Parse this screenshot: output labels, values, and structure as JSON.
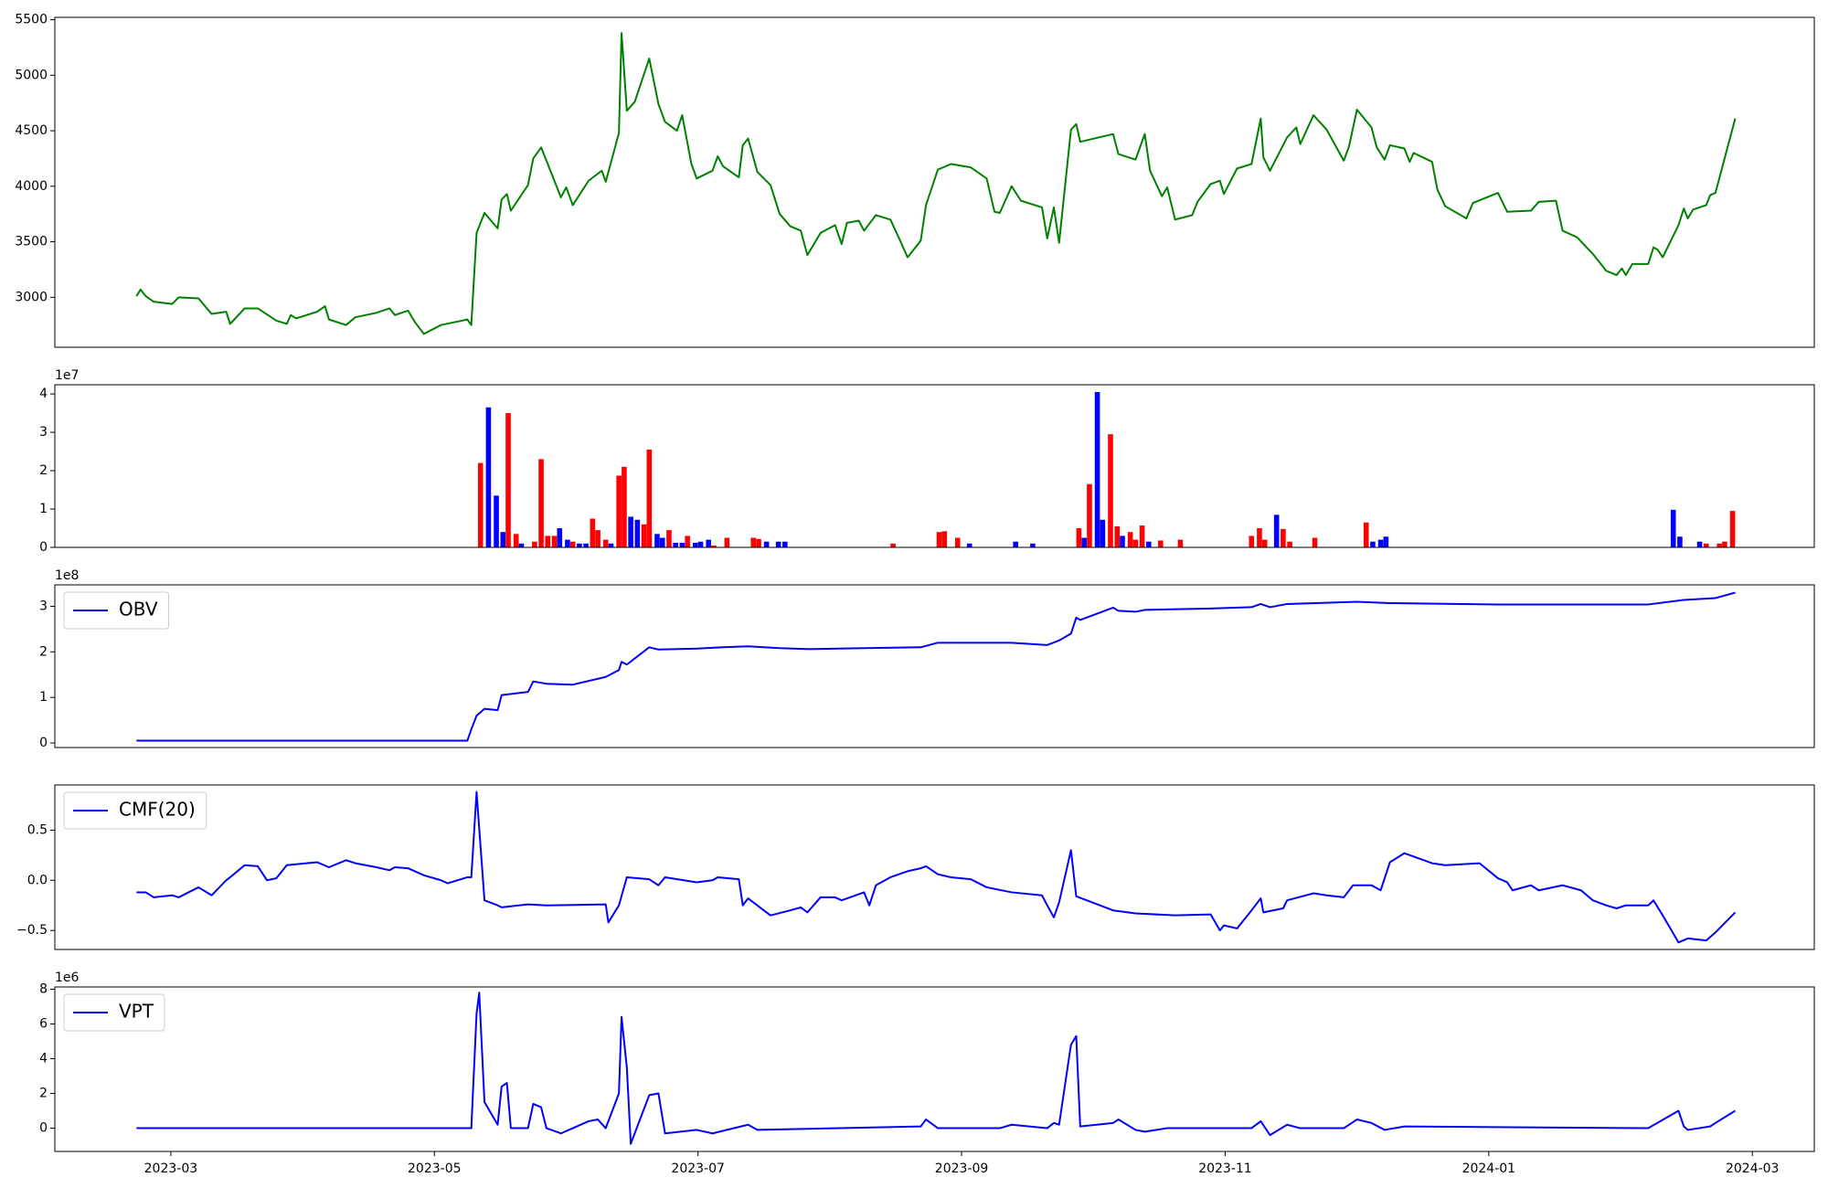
{
  "chart_data": [
    {
      "type": "line",
      "color": "green",
      "xlim": [
        1.12,
        14.47
      ],
      "ylim": [
        2550,
        5521
      ],
      "yticks": [
        3000,
        3500,
        4000,
        4500,
        5000,
        5500
      ],
      "x": [
        1.74,
        1.77,
        1.81,
        1.87,
        2.01,
        2.06,
        2.21,
        2.31,
        2.42,
        2.45,
        2.56,
        2.66,
        2.8,
        2.88,
        2.91,
        2.95,
        3.11,
        3.17,
        3.2,
        3.33,
        3.4,
        3.56,
        3.66,
        3.7,
        3.8,
        3.85,
        3.92,
        4.05,
        4.25,
        4.28,
        4.32,
        4.38,
        4.48,
        4.51,
        4.55,
        4.58,
        4.71,
        4.75,
        4.81,
        4.85,
        4.96,
        5.0,
        5.05,
        5.17,
        5.27,
        5.3,
        5.4,
        5.42,
        5.46,
        5.52,
        5.63,
        5.7,
        5.75,
        5.84,
        5.88,
        5.95,
        5.99,
        6.11,
        6.15,
        6.19,
        6.31,
        6.34,
        6.38,
        6.45,
        6.55,
        6.62,
        6.7,
        6.78,
        6.83,
        6.93,
        7.04,
        7.09,
        7.13,
        7.22,
        7.26,
        7.35,
        7.46,
        7.53,
        7.59,
        7.69,
        7.73,
        7.82,
        7.92,
        8.07,
        8.19,
        8.25,
        8.29,
        8.38,
        8.45,
        8.61,
        8.65,
        8.7,
        8.74,
        8.83,
        8.87,
        8.9,
        9.15,
        9.19,
        9.32,
        9.39,
        9.43,
        9.52,
        9.56,
        9.62,
        9.75,
        9.79,
        9.89,
        9.96,
        9.99,
        10.09,
        10.2,
        10.27,
        10.29,
        10.34,
        10.47,
        10.54,
        10.57,
        10.67,
        10.77,
        10.9,
        10.94,
        11.0,
        11.11,
        11.15,
        11.21,
        11.25,
        11.36,
        11.4,
        11.43,
        11.57,
        11.61,
        11.67,
        11.83,
        11.88,
        12.07,
        12.14,
        12.32,
        12.38,
        12.51,
        12.56,
        12.67,
        12.79,
        12.89,
        12.97,
        13.01,
        13.04,
        13.09,
        13.21,
        13.25,
        13.28,
        13.32,
        13.44,
        13.48,
        13.51,
        13.55,
        13.65,
        13.68,
        13.72,
        13.87
      ],
      "values": [
        3010,
        3070,
        3010,
        2960,
        2940,
        3000,
        2990,
        2850,
        2870,
        2760,
        2900,
        2900,
        2790,
        2760,
        2840,
        2810,
        2870,
        2920,
        2800,
        2750,
        2820,
        2860,
        2900,
        2840,
        2880,
        2780,
        2670,
        2750,
        2800,
        2750,
        3580,
        3760,
        3620,
        3880,
        3930,
        3780,
        4010,
        4250,
        4350,
        4230,
        3900,
        3990,
        3830,
        4050,
        4140,
        4040,
        4480,
        5380,
        4680,
        4760,
        5150,
        4740,
        4580,
        4500,
        4640,
        4200,
        4070,
        4140,
        4270,
        4180,
        4080,
        4370,
        4430,
        4130,
        4010,
        3750,
        3640,
        3600,
        3380,
        3580,
        3650,
        3480,
        3670,
        3690,
        3600,
        3740,
        3700,
        3520,
        3360,
        3510,
        3830,
        4150,
        4200,
        4170,
        4070,
        3770,
        3760,
        4000,
        3870,
        3810,
        3530,
        3810,
        3490,
        4510,
        4560,
        4400,
        4470,
        4290,
        4240,
        4470,
        4140,
        3910,
        3990,
        3700,
        3740,
        3860,
        4020,
        4050,
        3930,
        4160,
        4200,
        4610,
        4260,
        4140,
        4440,
        4530,
        4380,
        4640,
        4510,
        4230,
        4360,
        4690,
        4530,
        4350,
        4240,
        4370,
        4340,
        4220,
        4300,
        4220,
        3970,
        3820,
        3710,
        3850,
        3940,
        3770,
        3780,
        3860,
        3870,
        3600,
        3540,
        3390,
        3240,
        3200,
        3260,
        3200,
        3300,
        3300,
        3450,
        3430,
        3360,
        3650,
        3800,
        3710,
        3790,
        3830,
        3920,
        3940,
        4610
      ]
    },
    {
      "type": "bar",
      "offset_label": "1e7",
      "xlim": [
        1.12,
        14.47
      ],
      "ylim": [
        0,
        4.24
      ],
      "yticks": [
        0,
        1,
        2,
        3,
        4
      ],
      "x": [
        4.35,
        4.41,
        4.47,
        4.52,
        4.56,
        4.62,
        4.66,
        4.76,
        4.81,
        4.86,
        4.91,
        4.95,
        5.01,
        5.05,
        5.1,
        5.15,
        5.2,
        5.24,
        5.3,
        5.34,
        5.4,
        5.44,
        5.49,
        5.54,
        5.59,
        5.63,
        5.69,
        5.73,
        5.78,
        5.83,
        5.88,
        5.92,
        5.98,
        6.02,
        6.08,
        6.12,
        6.22,
        6.42,
        6.46,
        6.52,
        6.61,
        6.66,
        7.48,
        7.83,
        7.87,
        7.97,
        8.06,
        8.41,
        8.54,
        8.89,
        8.93,
        8.97,
        9.03,
        9.07,
        9.13,
        9.18,
        9.22,
        9.28,
        9.32,
        9.37,
        9.42,
        9.51,
        9.66,
        10.2,
        10.26,
        10.3,
        10.39,
        10.44,
        10.49,
        10.68,
        11.07,
        11.12,
        11.18,
        11.22,
        13.4,
        13.45,
        13.6,
        13.65,
        13.75,
        13.79,
        13.85
      ],
      "values": [
        2.2,
        3.65,
        1.35,
        0.4,
        3.5,
        0.35,
        0.1,
        0.15,
        2.3,
        0.3,
        0.3,
        0.5,
        0.2,
        0.15,
        0.1,
        0.1,
        0.75,
        0.45,
        0.2,
        0.1,
        1.87,
        2.1,
        0.8,
        0.72,
        0.6,
        2.55,
        0.35,
        0.25,
        0.45,
        0.12,
        0.12,
        0.3,
        0.12,
        0.15,
        0.2,
        0.05,
        0.25,
        0.25,
        0.22,
        0.15,
        0.15,
        0.15,
        0.1,
        0.4,
        0.42,
        0.25,
        0.1,
        0.15,
        0.1,
        0.5,
        0.25,
        1.65,
        4.05,
        0.72,
        2.95,
        0.55,
        0.3,
        0.4,
        0.2,
        0.57,
        0.15,
        0.18,
        0.2,
        0.3,
        0.5,
        0.2,
        0.85,
        0.48,
        0.15,
        0.25,
        0.65,
        0.15,
        0.2,
        0.28,
        0.98,
        0.28,
        0.15,
        0.1,
        0.1,
        0.15,
        0.95
      ],
      "colors": [
        "red",
        "blue",
        "blue",
        "blue",
        "red",
        "red",
        "blue",
        "red",
        "red",
        "red",
        "red",
        "blue",
        "blue",
        "red",
        "blue",
        "blue",
        "red",
        "red",
        "red",
        "blue",
        "red",
        "red",
        "blue",
        "blue",
        "red",
        "red",
        "blue",
        "blue",
        "red",
        "blue",
        "blue",
        "red",
        "blue",
        "blue",
        "blue",
        "red",
        "red",
        "red",
        "red",
        "blue",
        "blue",
        "blue",
        "red",
        "red",
        "red",
        "red",
        "blue",
        "blue",
        "blue",
        "red",
        "blue",
        "red",
        "blue",
        "blue",
        "red",
        "red",
        "blue",
        "red",
        "red",
        "red",
        "blue",
        "red",
        "red",
        "red",
        "red",
        "red",
        "blue",
        "red",
        "red",
        "red",
        "red",
        "blue",
        "blue",
        "blue",
        "blue",
        "blue",
        "blue",
        "red",
        "red",
        "red",
        "red"
      ]
    },
    {
      "type": "line",
      "offset_label": "1e8",
      "legend": "upper left",
      "xlim": [
        1.12,
        14.47
      ],
      "ylim": [
        -0.1,
        3.47
      ],
      "yticks": [
        0,
        1,
        2,
        3
      ],
      "x": [
        1.74,
        4.25,
        4.28,
        4.32,
        4.38,
        4.48,
        4.51,
        4.71,
        4.75,
        4.85,
        5.05,
        5.3,
        5.4,
        5.42,
        5.46,
        5.63,
        5.7,
        5.99,
        6.19,
        6.38,
        6.62,
        6.83,
        7.26,
        7.69,
        7.82,
        8.38,
        8.65,
        8.74,
        8.83,
        8.87,
        8.9,
        9.15,
        9.19,
        9.32,
        9.39,
        9.89,
        10.2,
        10.27,
        10.34,
        10.47,
        11.0,
        11.25,
        12.07,
        13.21,
        13.48,
        13.72,
        13.87
      ],
      "series": [
        {
          "name": "OBV",
          "color": "blue",
          "values": [
            0.05,
            0.05,
            0.3,
            0.6,
            0.75,
            0.72,
            1.05,
            1.12,
            1.35,
            1.3,
            1.28,
            1.45,
            1.6,
            1.78,
            1.72,
            2.1,
            2.05,
            2.07,
            2.1,
            2.12,
            2.08,
            2.06,
            2.08,
            2.1,
            2.2,
            2.2,
            2.15,
            2.25,
            2.4,
            2.75,
            2.7,
            2.97,
            2.9,
            2.88,
            2.92,
            2.95,
            2.98,
            3.05,
            2.98,
            3.05,
            3.1,
            3.07,
            3.04,
            3.04,
            3.14,
            3.18,
            3.3
          ]
        }
      ]
    },
    {
      "type": "line",
      "legend": "upper left",
      "xlim": [
        1.12,
        14.47
      ],
      "ylim": [
        -0.69,
        0.95
      ],
      "yticks": [
        {
          "value": -0.5,
          "label": "−0.5"
        },
        {
          "value": 0,
          "label": "0.0"
        },
        0.5
      ],
      "x": [
        1.74,
        1.81,
        1.87,
        2.01,
        2.06,
        2.21,
        2.31,
        2.42,
        2.45,
        2.56,
        2.66,
        2.73,
        2.8,
        2.88,
        2.95,
        3.11,
        3.2,
        3.33,
        3.4,
        3.56,
        3.66,
        3.7,
        3.8,
        3.92,
        4.05,
        4.1,
        4.25,
        4.28,
        4.32,
        4.38,
        4.48,
        4.51,
        4.71,
        4.85,
        5.3,
        5.32,
        5.4,
        5.46,
        5.63,
        5.7,
        5.75,
        5.99,
        6.11,
        6.15,
        6.31,
        6.34,
        6.38,
        6.55,
        6.7,
        6.78,
        6.83,
        6.93,
        7.04,
        7.09,
        7.26,
        7.3,
        7.35,
        7.46,
        7.59,
        7.69,
        7.73,
        7.82,
        7.92,
        8.07,
        8.19,
        8.38,
        8.61,
        8.65,
        8.7,
        8.74,
        8.83,
        8.87,
        9.15,
        9.32,
        9.62,
        9.89,
        9.96,
        9.99,
        10.09,
        10.2,
        10.27,
        10.29,
        10.44,
        10.47,
        10.67,
        10.77,
        10.9,
        10.97,
        11.11,
        11.18,
        11.25,
        11.36,
        11.57,
        11.67,
        11.93,
        12.07,
        12.14,
        12.18,
        12.32,
        12.38,
        12.56,
        12.7,
        12.79,
        12.89,
        12.97,
        13.04,
        13.21,
        13.25,
        13.32,
        13.44,
        13.51,
        13.65,
        13.72,
        13.87
      ],
      "series": [
        {
          "name": "CMF(20)",
          "color": "blue",
          "values": [
            -0.12,
            -0.12,
            -0.17,
            -0.15,
            -0.17,
            -0.07,
            -0.15,
            0.0,
            0.03,
            0.15,
            0.14,
            0.0,
            0.02,
            0.15,
            0.16,
            0.18,
            0.13,
            0.2,
            0.17,
            0.13,
            0.1,
            0.13,
            0.12,
            0.05,
            0.0,
            -0.03,
            0.03,
            0.03,
            0.88,
            -0.2,
            -0.25,
            -0.27,
            -0.24,
            -0.25,
            -0.24,
            -0.42,
            -0.25,
            0.03,
            0.01,
            -0.05,
            0.03,
            -0.02,
            0.0,
            0.03,
            0.01,
            -0.25,
            -0.18,
            -0.35,
            -0.3,
            -0.27,
            -0.32,
            -0.17,
            -0.17,
            -0.2,
            -0.12,
            -0.25,
            -0.05,
            0.03,
            0.09,
            0.12,
            0.14,
            0.06,
            0.03,
            0.01,
            -0.07,
            -0.12,
            -0.15,
            -0.25,
            -0.37,
            -0.22,
            0.3,
            -0.16,
            -0.3,
            -0.33,
            -0.35,
            -0.34,
            -0.5,
            -0.45,
            -0.48,
            -0.3,
            -0.18,
            -0.32,
            -0.28,
            -0.2,
            -0.13,
            -0.15,
            -0.17,
            -0.05,
            -0.05,
            -0.1,
            0.18,
            0.27,
            0.17,
            0.15,
            0.17,
            0.02,
            -0.02,
            -0.1,
            -0.05,
            -0.1,
            -0.05,
            -0.1,
            -0.2,
            -0.25,
            -0.28,
            -0.25,
            -0.25,
            -0.2,
            -0.35,
            -0.62,
            -0.58,
            -0.6,
            -0.52,
            -0.32
          ]
        }
      ]
    },
    {
      "type": "line",
      "offset_label": "1e6",
      "legend": "upper left",
      "xlim": [
        1.12,
        14.47
      ],
      "ylim": [
        -1.34,
        8.13
      ],
      "yticks": [
        0,
        2,
        4,
        6,
        8
      ],
      "xticks": [
        {
          "value": 2,
          "label": "2023-03"
        },
        {
          "value": 4,
          "label": "2023-05"
        },
        {
          "value": 6,
          "label": "2023-07"
        },
        {
          "value": 8,
          "label": "2023-09"
        },
        {
          "value": 10,
          "label": "2023-11"
        },
        {
          "value": 12,
          "label": "2024-01"
        },
        {
          "value": 14,
          "label": "2024-03"
        }
      ],
      "x": [
        1.74,
        4.25,
        4.28,
        4.32,
        4.34,
        4.38,
        4.48,
        4.51,
        4.55,
        4.58,
        4.71,
        4.75,
        4.81,
        4.85,
        4.96,
        5.05,
        5.17,
        5.24,
        5.3,
        5.4,
        5.42,
        5.46,
        5.49,
        5.63,
        5.7,
        5.75,
        5.99,
        6.11,
        6.38,
        6.45,
        7.69,
        7.73,
        7.82,
        8.29,
        8.38,
        8.65,
        8.7,
        8.74,
        8.83,
        8.87,
        8.9,
        9.15,
        9.19,
        9.32,
        9.39,
        9.56,
        10.2,
        10.27,
        10.34,
        10.47,
        10.57,
        10.9,
        11.0,
        11.11,
        11.21,
        11.36,
        13.21,
        13.44,
        13.48,
        13.51,
        13.68,
        13.72,
        13.87
      ],
      "series": [
        {
          "name": "VPT",
          "color": "blue",
          "values": [
            0,
            0,
            0,
            6.6,
            7.8,
            1.5,
            0.2,
            2.4,
            2.6,
            0.0,
            0.0,
            1.4,
            1.2,
            0.0,
            -0.3,
            0.0,
            0.4,
            0.5,
            0.0,
            2.0,
            6.4,
            3.5,
            -0.9,
            1.9,
            2.0,
            -0.3,
            -0.1,
            -0.3,
            0.2,
            -0.1,
            0.1,
            0.5,
            0.0,
            0.0,
            0.2,
            0.0,
            0.3,
            0.2,
            4.8,
            5.3,
            0.1,
            0.3,
            0.5,
            -0.1,
            -0.2,
            0.0,
            0.0,
            0.4,
            -0.4,
            0.2,
            0.0,
            0.0,
            0.5,
            0.3,
            -0.1,
            0.1,
            0.0,
            1.0,
            0.1,
            -0.1,
            0.1,
            0.3,
            1.0
          ]
        }
      ]
    }
  ]
}
